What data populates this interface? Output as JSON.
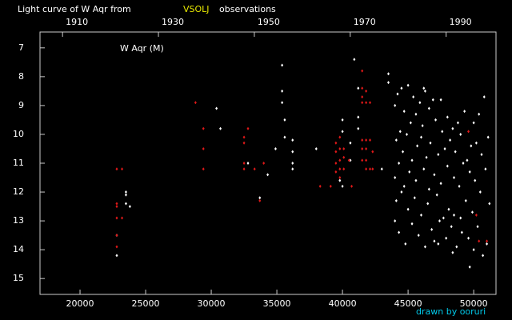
{
  "chart_data": {
    "type": "scatter",
    "title": "Light curve of W Aqr from",
    "title_source": "VSOLJ",
    "title_source_color": "#e8e800",
    "title_tail": "observations",
    "label": "W Aqr (M)",
    "credit": "drawn by ooruri",
    "credit_color": "#00c8e8",
    "xlim": [
      16950,
      51700
    ],
    "xticks": [
      20000,
      25000,
      30000,
      35000,
      40000,
      45000,
      50000
    ],
    "x2lim": [
      1905.3,
      2000.4
    ],
    "x2ticks": [
      1910,
      1930,
      1950,
      1970,
      1990
    ],
    "ylim": [
      15.55,
      6.45
    ],
    "yticks": [
      7,
      8,
      9,
      10,
      11,
      12,
      13,
      14,
      15
    ],
    "series": [
      {
        "color": "#ffffff",
        "x": [
          22800,
          22800,
          23500,
          23500,
          23500,
          23800,
          30400,
          30700,
          32800,
          33700,
          34300,
          34900,
          35400,
          35400,
          35400,
          35600,
          35600,
          36200,
          36200,
          36200,
          36200,
          38000,
          39800,
          40000,
          40000,
          40000,
          40600,
          40600,
          40900,
          41200,
          41200,
          41200,
          43000,
          43500,
          43500,
          44000,
          44000,
          44000,
          44100,
          44100,
          44200,
          44300,
          44300,
          44400,
          44500,
          44500,
          44600,
          44700,
          44700,
          44800,
          44900,
          45000,
          45000,
          45100,
          45200,
          45300,
          45300,
          45400,
          45500,
          45600,
          45600,
          45700,
          45800,
          45900,
          46000,
          46000,
          46100,
          46200,
          46300,
          46300,
          46400,
          46500,
          46600,
          46600,
          46700,
          46800,
          46900,
          47000,
          47000,
          47100,
          47200,
          47300,
          47400,
          47500,
          47500,
          47600,
          47700,
          47800,
          47900,
          48000,
          48000,
          48100,
          48200,
          48300,
          48400,
          48500,
          48500,
          48600,
          48700,
          48800,
          48900,
          49000,
          49000,
          49100,
          49200,
          49300,
          49400,
          49500,
          49600,
          49700,
          49800,
          49900,
          50000,
          50000,
          50100,
          50200,
          50300,
          50400,
          50500,
          50600,
          50700,
          50800,
          50900,
          51000,
          51100,
          51200,
          49700,
          46200,
          47300,
          48400
        ],
        "values": [
          14.2,
          13.5,
          12.0,
          12.1,
          12.4,
          12.5,
          9.1,
          9.8,
          11.0,
          12.2,
          11.4,
          10.5,
          8.9,
          8.5,
          7.6,
          9.5,
          10.1,
          10.2,
          10.6,
          11.0,
          11.2,
          10.5,
          11.6,
          9.5,
          9.9,
          11.8,
          10.3,
          10.9,
          7.4,
          8.4,
          9.4,
          9.8,
          11.2,
          7.9,
          8.2,
          9.0,
          11.5,
          13.0,
          10.2,
          12.3,
          8.6,
          11.0,
          13.4,
          9.9,
          12.0,
          8.4,
          10.6,
          11.8,
          9.2,
          13.8,
          10.0,
          8.3,
          12.6,
          11.3,
          9.6,
          10.9,
          13.1,
          8.7,
          12.2,
          9.3,
          11.6,
          10.4,
          13.5,
          8.9,
          10.1,
          12.8,
          9.7,
          11.2,
          8.5,
          13.9,
          10.8,
          12.4,
          9.1,
          11.9,
          10.3,
          13.3,
          8.8,
          11.4,
          13.7,
          9.5,
          12.1,
          10.7,
          13.0,
          8.8,
          11.7,
          9.9,
          12.9,
          10.5,
          13.6,
          9.4,
          11.1,
          12.6,
          10.2,
          13.2,
          9.8,
          11.5,
          12.8,
          10.6,
          13.9,
          9.6,
          11.8,
          12.9,
          10.0,
          13.4,
          11.0,
          9.2,
          12.3,
          10.9,
          13.6,
          11.3,
          10.4,
          12.7,
          9.6,
          14.0,
          11.6,
          10.3,
          13.2,
          9.3,
          12.0,
          10.7,
          14.2,
          8.7,
          11.2,
          13.8,
          10.1,
          12.4,
          14.6,
          8.4,
          13.8,
          14.1
        ]
      },
      {
        "color": "#e01818",
        "x": [
          22800,
          22800,
          22800,
          22800,
          22800,
          22800,
          23200,
          23200,
          28800,
          29400,
          29400,
          29400,
          32500,
          32500,
          32500,
          32500,
          32800,
          33300,
          33700,
          34000,
          38300,
          39100,
          39500,
          39500,
          39500,
          39500,
          39800,
          39800,
          39800,
          39800,
          39800,
          40100,
          40100,
          40100,
          40500,
          40700,
          41500,
          41500,
          41500,
          41500,
          41500,
          41500,
          41500,
          41800,
          41800,
          41800,
          41800,
          41800,
          41800,
          42100,
          42100,
          42100,
          42300,
          42300,
          49600,
          50200,
          50400,
          51000
        ],
        "values": [
          12.4,
          12.5,
          12.9,
          13.5,
          13.9,
          11.2,
          11.2,
          12.9,
          8.9,
          9.8,
          10.5,
          11.2,
          10.1,
          10.3,
          11.0,
          11.2,
          9.8,
          11.2,
          12.3,
          11.0,
          11.8,
          11.8,
          10.3,
          10.6,
          11.0,
          11.3,
          10.1,
          10.5,
          10.9,
          11.2,
          11.5,
          10.5,
          10.8,
          11.2,
          10.9,
          11.8,
          7.8,
          8.4,
          8.7,
          8.9,
          10.2,
          10.5,
          10.9,
          8.5,
          8.9,
          10.2,
          10.5,
          10.9,
          11.2,
          8.9,
          10.2,
          11.2,
          10.6,
          11.2,
          9.9,
          12.8,
          13.7,
          13.7
        ]
      }
    ]
  }
}
